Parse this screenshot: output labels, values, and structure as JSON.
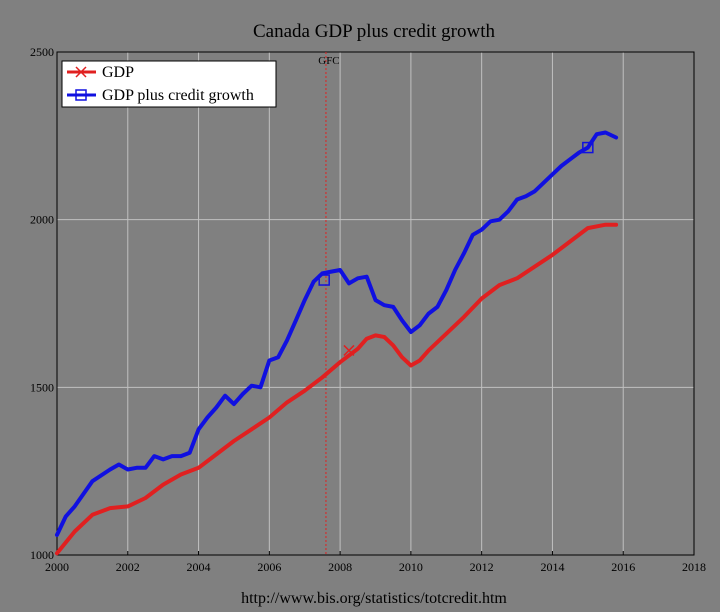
{
  "chart_data": {
    "type": "line",
    "title": "Canada GDP plus credit growth",
    "xlim": [
      2000,
      2018
    ],
    "ylim": [
      1000,
      2500
    ],
    "x_ticks": [
      "2000",
      "2002",
      "2004",
      "2006",
      "2008",
      "2010",
      "2012",
      "2014",
      "2016",
      "2018"
    ],
    "y_ticks": [
      "1000",
      "1500",
      "2000",
      "2500"
    ],
    "grid": true,
    "legend_position": "top-left",
    "annotation": {
      "label": "GFC",
      "x": 2007.6
    },
    "source": "http://www.bis.org/statistics/totcredit.htm",
    "series": [
      {
        "name": "GDP",
        "color": "#e02020",
        "marker": "x",
        "marker_at": [
          2008.25,
          1610
        ],
        "x": [
          2000.0,
          2000.5,
          2001.0,
          2001.5,
          2002.0,
          2002.5,
          2003.0,
          2003.5,
          2004.0,
          2004.5,
          2005.0,
          2005.5,
          2006.0,
          2006.5,
          2007.0,
          2007.5,
          2008.0,
          2008.5,
          2008.75,
          2009.0,
          2009.25,
          2009.5,
          2009.75,
          2010.0,
          2010.25,
          2010.5,
          2011.0,
          2011.5,
          2012.0,
          2012.5,
          2013.0,
          2013.5,
          2014.0,
          2014.5,
          2015.0,
          2015.5,
          2015.8
        ],
        "values": [
          1005,
          1070,
          1120,
          1140,
          1145,
          1170,
          1210,
          1240,
          1260,
          1300,
          1340,
          1375,
          1410,
          1455,
          1490,
          1530,
          1575,
          1615,
          1645,
          1655,
          1650,
          1625,
          1590,
          1565,
          1580,
          1610,
          1660,
          1710,
          1765,
          1805,
          1825,
          1860,
          1895,
          1935,
          1975,
          1985,
          1985
        ]
      },
      {
        "name": "GDP plus credit growth",
        "color": "#1010e0",
        "marker": "square",
        "marker_at": [
          [
            2007.55,
            1820
          ],
          [
            2015.0,
            2215
          ]
        ],
        "x": [
          2000.0,
          2000.25,
          2000.5,
          2001.0,
          2001.5,
          2001.75,
          2002.0,
          2002.25,
          2002.5,
          2002.75,
          2003.0,
          2003.25,
          2003.5,
          2003.75,
          2004.0,
          2004.25,
          2004.5,
          2004.75,
          2005.0,
          2005.25,
          2005.5,
          2005.75,
          2006.0,
          2006.25,
          2006.5,
          2006.75,
          2007.0,
          2007.25,
          2007.5,
          2007.75,
          2008.0,
          2008.25,
          2008.5,
          2008.75,
          2009.0,
          2009.25,
          2009.5,
          2009.75,
          2010.0,
          2010.25,
          2010.5,
          2010.75,
          2011.0,
          2011.25,
          2011.5,
          2011.75,
          2012.0,
          2012.25,
          2012.5,
          2012.75,
          2013.0,
          2013.25,
          2013.5,
          2013.75,
          2014.0,
          2014.25,
          2014.5,
          2014.75,
          2015.0,
          2015.25,
          2015.5,
          2015.8
        ],
        "values": [
          1060,
          1115,
          1145,
          1220,
          1255,
          1270,
          1255,
          1260,
          1260,
          1295,
          1285,
          1295,
          1295,
          1305,
          1375,
          1410,
          1440,
          1475,
          1450,
          1480,
          1505,
          1500,
          1580,
          1590,
          1640,
          1700,
          1760,
          1815,
          1840,
          1845,
          1850,
          1810,
          1825,
          1830,
          1760,
          1745,
          1740,
          1700,
          1665,
          1685,
          1720,
          1740,
          1790,
          1850,
          1900,
          1955,
          1970,
          1995,
          2000,
          2025,
          2060,
          2070,
          2085,
          2110,
          2135,
          2160,
          2180,
          2200,
          2215,
          2255,
          2260,
          2245
        ]
      }
    ]
  }
}
